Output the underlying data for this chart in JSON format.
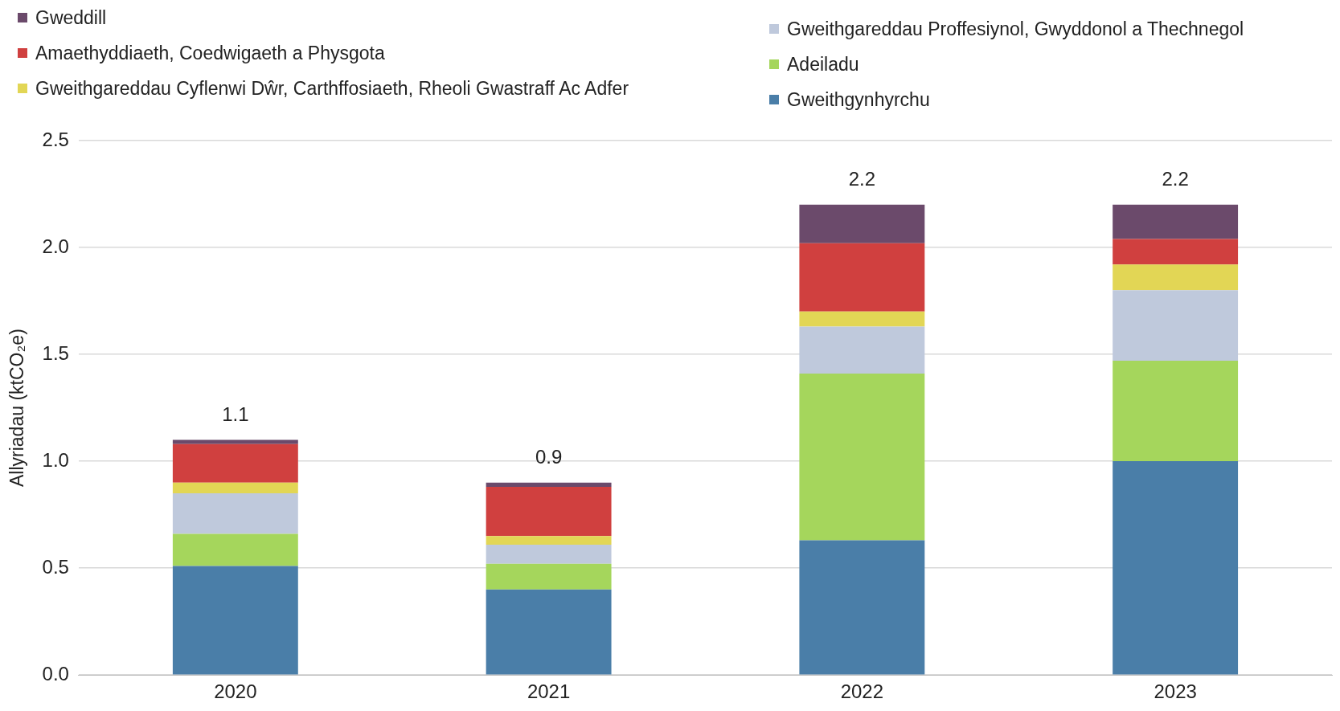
{
  "chart_data": {
    "type": "bar",
    "stacked": true,
    "ylabel": "Allyriadau (ktCO₂e)",
    "categories": [
      "2020",
      "2021",
      "2022",
      "2023"
    ],
    "series": [
      {
        "name": "Gweithgynhyrchu",
        "color": "#4a7ea8",
        "values": [
          0.51,
          0.4,
          0.63,
          1.0
        ]
      },
      {
        "name": "Adeiladu",
        "color": "#a5d65c",
        "values": [
          0.15,
          0.12,
          0.78,
          0.47
        ]
      },
      {
        "name": "Gweithgareddau Proffesiynol, Gwyddonol a Thechnegol",
        "color": "#bfc9dc",
        "values": [
          0.19,
          0.09,
          0.22,
          0.33
        ]
      },
      {
        "name": "Gweithgareddau Cyflenwi Dŵr, Carthffosiaeth, Rheoli Gwastraff Ac Adfer",
        "color": "#e2d655",
        "values": [
          0.05,
          0.04,
          0.07,
          0.12
        ]
      },
      {
        "name": "Amaethyddiaeth, Coedwigaeth a Physgota",
        "color": "#d0403f",
        "values": [
          0.18,
          0.23,
          0.32,
          0.12
        ]
      },
      {
        "name": "Gweddill",
        "color": "#6b4a6b",
        "values": [
          0.02,
          0.02,
          0.18,
          0.16
        ]
      }
    ],
    "totals": [
      "1.1",
      "0.9",
      "2.2",
      "2.2"
    ],
    "ylim": [
      0,
      2.5
    ],
    "yticks": [
      {
        "value": 0,
        "label": "0.0"
      },
      {
        "value": 0.5,
        "label": "0.5"
      },
      {
        "value": 1,
        "label": "1.0"
      },
      {
        "value": 1.5,
        "label": "1.5"
      },
      {
        "value": 2,
        "label": "2.0"
      },
      {
        "value": 2.5,
        "label": "2.5"
      }
    ],
    "grid": "y",
    "legend": "top"
  }
}
